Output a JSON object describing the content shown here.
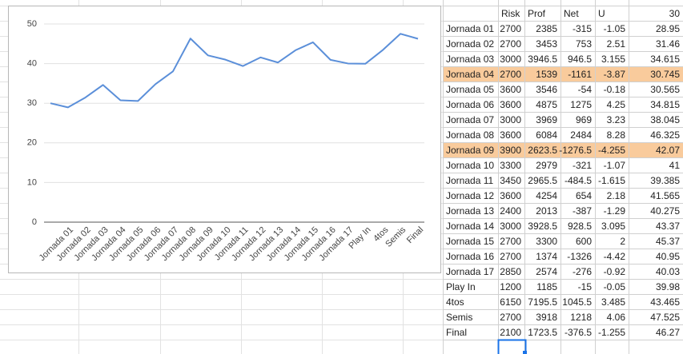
{
  "chart_data": {
    "type": "line",
    "categories": [
      null,
      "Jornada 01",
      "Jornada 02",
      "Jornada 03",
      "Jornada 04",
      "Jornada 05",
      "Jornada 06",
      "Jornada 07",
      "Jornada 08",
      "Jornada 09",
      "Jornada 10",
      "Jornada 11",
      "Jornada 12",
      "Jornada 13",
      "Jornada 14",
      "Jornada 15",
      "Jornada 16",
      "Jornada 17",
      "Play In",
      "4tos",
      "Semis",
      "Final"
    ],
    "series": [
      {
        "color": "#5b8fd9",
        "values": [
          30,
          28.95,
          31.46,
          34.615,
          30.745,
          30.565,
          34.815,
          38.045,
          46.325,
          42.07,
          41,
          39.385,
          41.565,
          40.275,
          43.37,
          45.37,
          40.95,
          40.03,
          39.98,
          43.465,
          47.525,
          46.27
        ]
      }
    ],
    "ylim": [
      0,
      50
    ],
    "yticks": [
      0,
      10,
      20,
      30,
      40,
      50
    ],
    "grid": true
  },
  "table": {
    "header": [
      null,
      "Risk",
      "Prof",
      "Net",
      "U",
      30
    ],
    "highlight_rows": [
      3,
      8
    ],
    "highlight_color": "#f9cb9c",
    "rows": [
      [
        "Jornada 01",
        2700,
        2385,
        -315,
        -1.05,
        28.95
      ],
      [
        "Jornada 02",
        2700,
        3453,
        753,
        2.51,
        31.46
      ],
      [
        "Jornada 03",
        3000,
        3946.5,
        946.5,
        3.155,
        34.615
      ],
      [
        "Jornada 04",
        2700,
        1539,
        -1161,
        -3.87,
        30.745
      ],
      [
        "Jornada 05",
        3600,
        3546,
        -54,
        -0.18,
        30.565
      ],
      [
        "Jornada 06",
        3600,
        4875,
        1275,
        4.25,
        34.815
      ],
      [
        "Jornada 07",
        3000,
        3969,
        969,
        3.23,
        38.045
      ],
      [
        "Jornada 08",
        3600,
        6084,
        2484,
        8.28,
        46.325
      ],
      [
        "Jornada 09",
        3900,
        2623.5,
        -1276.5,
        -4.255,
        42.07
      ],
      [
        "Jornada 10",
        3300,
        2979,
        -321,
        -1.07,
        41
      ],
      [
        "Jornada 11",
        3450,
        2965.5,
        -484.5,
        -1.615,
        39.385
      ],
      [
        "Jornada 12",
        3600,
        4254,
        654,
        2.18,
        41.565
      ],
      [
        "Jornada 13",
        2400,
        2013,
        -387,
        -1.29,
        40.275
      ],
      [
        "Jornada 14",
        3000,
        3928.5,
        928.5,
        3.095,
        43.37
      ],
      [
        "Jornada 15",
        2700,
        3300,
        600,
        2,
        45.37
      ],
      [
        "Jornada 16",
        2700,
        1374,
        -1326,
        -4.42,
        40.95
      ],
      [
        "Jornada 17",
        2850,
        2574,
        -276,
        -0.92,
        40.03
      ],
      [
        "Play In",
        1200,
        1185,
        -15,
        -0.05,
        39.98
      ],
      [
        "4tos",
        6150,
        7195.5,
        1045.5,
        3.485,
        43.465
      ],
      [
        "Semis",
        2700,
        3918,
        1218,
        4.06,
        47.525
      ],
      [
        "Final",
        2100,
        1723.5,
        -376.5,
        -1.255,
        46.27
      ]
    ]
  }
}
